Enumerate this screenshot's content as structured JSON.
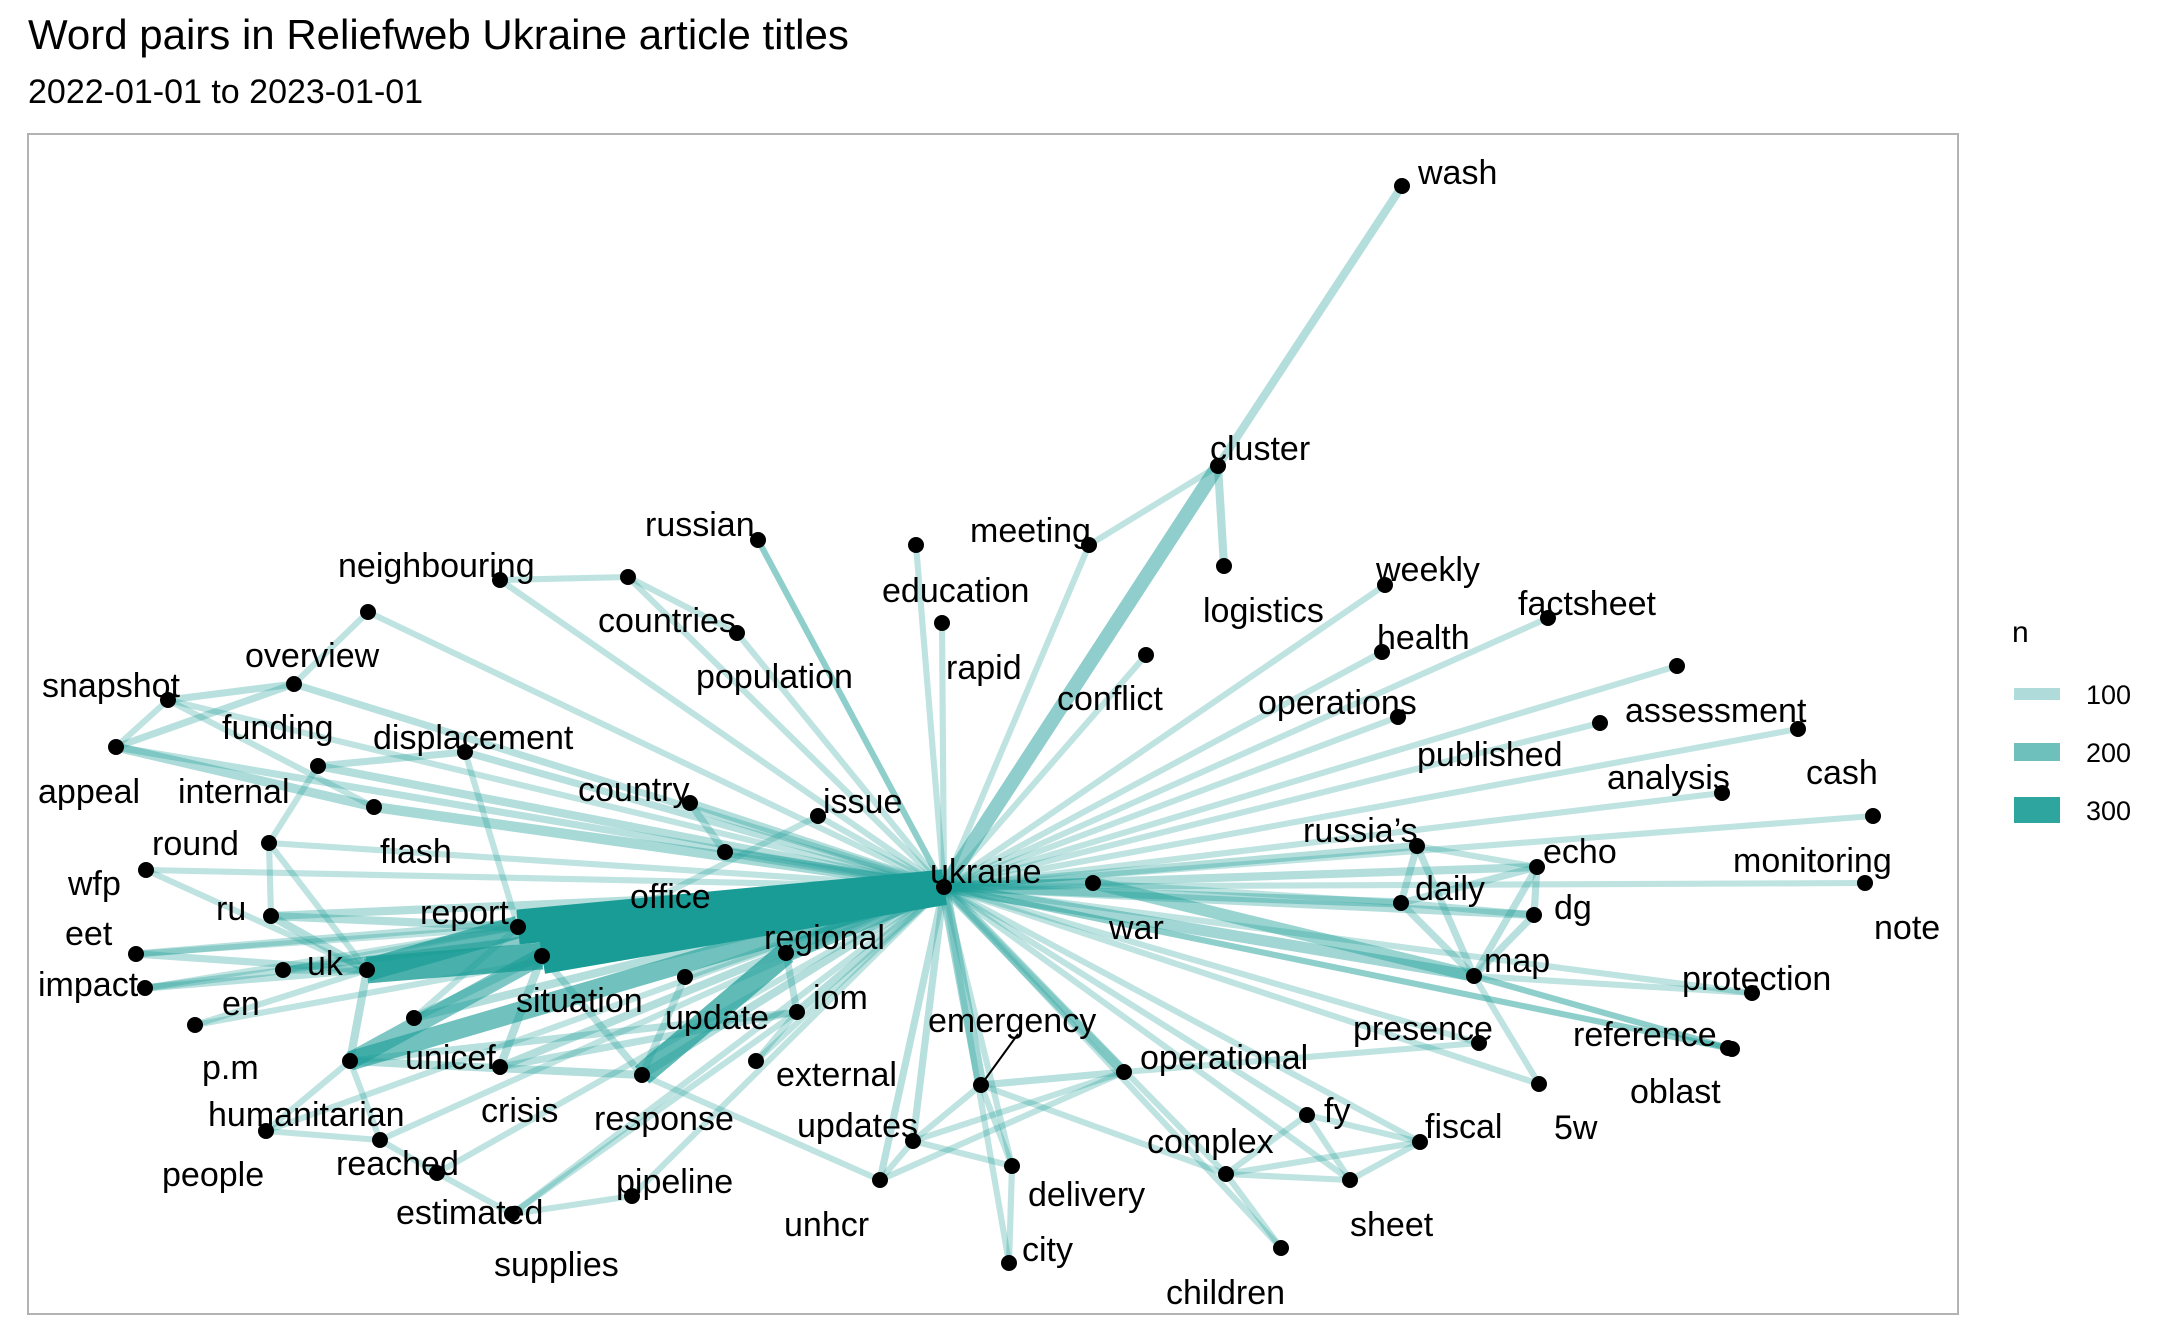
{
  "title": "Word pairs in Reliefweb Ukraine article titles",
  "subtitle": "2022-01-01 to 2023-01-01",
  "colors": {
    "edge": "#1a9c96",
    "node": "#000000",
    "panel_border": "#b3b3b3"
  },
  "legend": {
    "title": "n",
    "items": [
      {
        "label": "100",
        "value": 100
      },
      {
        "label": "200",
        "value": 200
      },
      {
        "label": "300",
        "value": 300
      }
    ]
  },
  "nodes": [
    {
      "id": "wash",
      "label": "wash"
    },
    {
      "id": "cluster",
      "label": "cluster"
    },
    {
      "id": "meeting",
      "label": "meeting"
    },
    {
      "id": "russian",
      "label": "russian"
    },
    {
      "id": "neighbouring",
      "label": "neighbouring"
    },
    {
      "id": "countries",
      "label": "countries"
    },
    {
      "id": "population",
      "label": "population"
    },
    {
      "id": "education",
      "label": "education"
    },
    {
      "id": "rapid",
      "label": "rapid"
    },
    {
      "id": "logistics",
      "label": "logistics"
    },
    {
      "id": "weekly",
      "label": "weekly"
    },
    {
      "id": "health",
      "label": "health"
    },
    {
      "id": "factsheet",
      "label": "factsheet"
    },
    {
      "id": "overview",
      "label": "overview"
    },
    {
      "id": "snapshot",
      "label": "snapshot"
    },
    {
      "id": "funding",
      "label": "funding"
    },
    {
      "id": "displacement",
      "label": "displacement"
    },
    {
      "id": "appeal",
      "label": "appeal"
    },
    {
      "id": "internal",
      "label": "internal"
    },
    {
      "id": "conflict",
      "label": "conflict"
    },
    {
      "id": "operations",
      "label": "operations"
    },
    {
      "id": "assessment",
      "label": "assessment"
    },
    {
      "id": "published",
      "label": "published"
    },
    {
      "id": "analysis",
      "label": "analysis"
    },
    {
      "id": "cash",
      "label": "cash"
    },
    {
      "id": "country",
      "label": "country"
    },
    {
      "id": "issue",
      "label": "issue"
    },
    {
      "id": "flash",
      "label": "flash"
    },
    {
      "id": "round",
      "label": "round"
    },
    {
      "id": "wfp",
      "label": "wfp"
    },
    {
      "id": "office",
      "label": "office"
    },
    {
      "id": "ukraine",
      "label": "ukraine"
    },
    {
      "id": "russias",
      "label": "russia’s"
    },
    {
      "id": "echo",
      "label": "echo"
    },
    {
      "id": "monitoring",
      "label": "monitoring"
    },
    {
      "id": "daily",
      "label": "daily"
    },
    {
      "id": "dg",
      "label": "dg"
    },
    {
      "id": "war",
      "label": "war"
    },
    {
      "id": "note",
      "label": "note"
    },
    {
      "id": "ru",
      "label": "ru"
    },
    {
      "id": "report",
      "label": "report"
    },
    {
      "id": "eet",
      "label": "eet"
    },
    {
      "id": "regional",
      "label": "regional"
    },
    {
      "id": "uk",
      "label": "uk"
    },
    {
      "id": "impact",
      "label": "impact"
    },
    {
      "id": "situation",
      "label": "situation"
    },
    {
      "id": "iom",
      "label": "iom"
    },
    {
      "id": "map",
      "label": "map"
    },
    {
      "id": "protection",
      "label": "protection"
    },
    {
      "id": "en",
      "label": "en"
    },
    {
      "id": "update",
      "label": "update"
    },
    {
      "id": "emergency",
      "label": "emergency"
    },
    {
      "id": "presence",
      "label": "presence"
    },
    {
      "id": "reference",
      "label": "reference"
    },
    {
      "id": "pm",
      "label": "p.m"
    },
    {
      "id": "unicef",
      "label": "unicef"
    },
    {
      "id": "operational",
      "label": "operational"
    },
    {
      "id": "external",
      "label": "external"
    },
    {
      "id": "oblast",
      "label": "oblast"
    },
    {
      "id": "humanitarian",
      "label": "humanitarian"
    },
    {
      "id": "crisis",
      "label": "crisis"
    },
    {
      "id": "response",
      "label": "response"
    },
    {
      "id": "fy",
      "label": "fy"
    },
    {
      "id": "5w",
      "label": "5w"
    },
    {
      "id": "updates",
      "label": "updates"
    },
    {
      "id": "fiscal",
      "label": "fiscal"
    },
    {
      "id": "people",
      "label": "people"
    },
    {
      "id": "reached",
      "label": "reached"
    },
    {
      "id": "complex",
      "label": "complex"
    },
    {
      "id": "pipeline",
      "label": "pipeline"
    },
    {
      "id": "delivery",
      "label": "delivery"
    },
    {
      "id": "estimated",
      "label": "estimated"
    },
    {
      "id": "unhcr",
      "label": "unhcr"
    },
    {
      "id": "sheet",
      "label": "sheet"
    },
    {
      "id": "supplies",
      "label": "supplies"
    },
    {
      "id": "city",
      "label": "city"
    },
    {
      "id": "children",
      "label": "children"
    }
  ],
  "edges": [
    {
      "from": "ukraine",
      "to": "report",
      "n": 320
    },
    {
      "from": "ukraine",
      "to": "situation",
      "n": 330
    },
    {
      "from": "situation",
      "to": "uk",
      "n": 240
    },
    {
      "from": "report",
      "to": "uk",
      "n": 200
    },
    {
      "from": "regional",
      "to": "response",
      "n": 200
    },
    {
      "from": "ukraine",
      "to": "regional",
      "n": 160
    },
    {
      "from": "ukraine",
      "to": "humanitarian",
      "n": 170
    },
    {
      "from": "humanitarian",
      "to": "situation",
      "n": 150
    },
    {
      "from": "ukraine",
      "to": "cluster",
      "n": 120
    },
    {
      "from": "cluster",
      "to": "wash",
      "n": 60
    },
    {
      "from": "cluster",
      "to": "logistics",
      "n": 60
    },
    {
      "from": "cluster",
      "to": "meeting",
      "n": 40
    },
    {
      "from": "ukraine",
      "to": "war",
      "n": 80
    },
    {
      "from": "war",
      "to": "map",
      "n": 100
    },
    {
      "from": "ukraine",
      "to": "map",
      "n": 90
    },
    {
      "from": "ukraine",
      "to": "daily",
      "n": 70
    },
    {
      "from": "ukraine",
      "to": "echo",
      "n": 60
    },
    {
      "from": "ukraine",
      "to": "dg",
      "n": 60
    },
    {
      "from": "ukraine",
      "to": "russias",
      "n": 60
    },
    {
      "from": "ukraine",
      "to": "emergency",
      "n": 90
    },
    {
      "from": "ukraine",
      "to": "operational",
      "n": 80
    },
    {
      "from": "ukraine",
      "to": "office",
      "n": 70
    },
    {
      "from": "ukraine",
      "to": "flash",
      "n": 80
    },
    {
      "from": "flash",
      "to": "appeal",
      "n": 70
    },
    {
      "from": "funding",
      "to": "snapshot",
      "n": 50
    },
    {
      "from": "funding",
      "to": "appeal",
      "n": 50
    },
    {
      "from": "ukraine",
      "to": "funding",
      "n": 50
    },
    {
      "from": "ukraine",
      "to": "internal",
      "n": 60
    },
    {
      "from": "internal",
      "to": "displacement",
      "n": 50
    },
    {
      "from": "ukraine",
      "to": "displacement",
      "n": 50
    },
    {
      "from": "ukraine",
      "to": "overview",
      "n": 40
    },
    {
      "from": "ukraine",
      "to": "snapshot",
      "n": 40
    },
    {
      "from": "ukraine",
      "to": "appeal",
      "n": 50
    },
    {
      "from": "ukraine",
      "to": "neighbouring",
      "n": 40
    },
    {
      "from": "neighbouring",
      "to": "countries",
      "n": 40
    },
    {
      "from": "ukraine",
      "to": "countries",
      "n": 40
    },
    {
      "from": "ukraine",
      "to": "russian",
      "n": 40
    },
    {
      "from": "ukraine",
      "to": "population",
      "n": 40
    },
    {
      "from": "ukraine",
      "to": "education",
      "n": 40
    },
    {
      "from": "ukraine",
      "to": "rapid",
      "n": 40
    },
    {
      "from": "ukraine",
      "to": "meeting",
      "n": 40
    },
    {
      "from": "ukraine",
      "to": "conflict",
      "n": 40
    },
    {
      "from": "ukraine",
      "to": "weekly",
      "n": 40
    },
    {
      "from": "ukraine",
      "to": "health",
      "n": 40
    },
    {
      "from": "ukraine",
      "to": "factsheet",
      "n": 40
    },
    {
      "from": "ukraine",
      "to": "operations",
      "n": 40
    },
    {
      "from": "ukraine",
      "to": "assessment",
      "n": 40
    },
    {
      "from": "ukraine",
      "to": "published",
      "n": 40
    },
    {
      "from": "ukraine",
      "to": "analysis",
      "n": 40
    },
    {
      "from": "ukraine",
      "to": "cash",
      "n": 40
    },
    {
      "from": "ukraine",
      "to": "monitoring",
      "n": 40
    },
    {
      "from": "ukraine",
      "to": "note",
      "n": 40
    },
    {
      "from": "ukraine",
      "to": "protection",
      "n": 40
    },
    {
      "from": "ukraine",
      "to": "reference",
      "n": 40
    },
    {
      "from": "ukraine",
      "to": "oblast",
      "n": 40
    },
    {
      "from": "ukraine",
      "to": "5w",
      "n": 40
    },
    {
      "from": "ukraine",
      "to": "presence",
      "n": 40
    },
    {
      "from": "ukraine",
      "to": "country",
      "n": 60
    },
    {
      "from": "ukraine",
      "to": "issue",
      "n": 40
    },
    {
      "from": "ukraine",
      "to": "round",
      "n": 40
    },
    {
      "from": "ukraine",
      "to": "wfp",
      "n": 40
    },
    {
      "from": "ukraine",
      "to": "ru",
      "n": 60
    },
    {
      "from": "ukraine",
      "to": "eet",
      "n": 50
    },
    {
      "from": "ukraine",
      "to": "impact",
      "n": 50
    },
    {
      "from": "ukraine",
      "to": "en",
      "n": 50
    },
    {
      "from": "ukraine",
      "to": "pm",
      "n": 40
    },
    {
      "from": "ukraine",
      "to": "unicef",
      "n": 60
    },
    {
      "from": "ukraine",
      "to": "crisis",
      "n": 60
    },
    {
      "from": "ukraine",
      "to": "response",
      "n": 60
    },
    {
      "from": "ukraine",
      "to": "update",
      "n": 60
    },
    {
      "from": "ukraine",
      "to": "iom",
      "n": 50
    },
    {
      "from": "ukraine",
      "to": "external",
      "n": 40
    },
    {
      "from": "ukraine",
      "to": "updates",
      "n": 50
    },
    {
      "from": "ukraine",
      "to": "unhcr",
      "n": 50
    },
    {
      "from": "ukraine",
      "to": "delivery",
      "n": 40
    },
    {
      "from": "ukraine",
      "to": "city",
      "n": 40
    },
    {
      "from": "ukraine",
      "to": "complex",
      "n": 40
    },
    {
      "from": "ukraine",
      "to": "fy",
      "n": 40
    },
    {
      "from": "ukraine",
      "to": "fiscal",
      "n": 40
    },
    {
      "from": "ukraine",
      "to": "sheet",
      "n": 40
    },
    {
      "from": "ukraine",
      "to": "children",
      "n": 40
    },
    {
      "from": "ukraine",
      "to": "people",
      "n": 40
    },
    {
      "from": "ukraine",
      "to": "reached",
      "n": 40
    },
    {
      "from": "ukraine",
      "to": "estimated",
      "n": 40
    },
    {
      "from": "ukraine",
      "to": "supplies",
      "n": 40
    },
    {
      "from": "ukraine",
      "to": "pipeline",
      "n": 40
    },
    {
      "from": "country",
      "to": "office",
      "n": 50
    },
    {
      "from": "issue",
      "to": "situation",
      "n": 40
    },
    {
      "from": "round",
      "to": "uk",
      "n": 40
    },
    {
      "from": "wfp",
      "to": "uk",
      "n": 40
    },
    {
      "from": "ru",
      "to": "report",
      "n": 60
    },
    {
      "from": "ru",
      "to": "uk",
      "n": 60
    },
    {
      "from": "eet",
      "to": "uk",
      "n": 50
    },
    {
      "from": "eet",
      "to": "report",
      "n": 40
    },
    {
      "from": "impact",
      "to": "uk",
      "n": 50
    },
    {
      "from": "impact",
      "to": "report",
      "n": 40
    },
    {
      "from": "en",
      "to": "uk",
      "n": 50
    },
    {
      "from": "en",
      "to": "report",
      "n": 40
    },
    {
      "from": "pm",
      "to": "uk",
      "n": 40
    },
    {
      "from": "unicef",
      "to": "situation",
      "n": 60
    },
    {
      "from": "unicef",
      "to": "report",
      "n": 40
    },
    {
      "from": "crisis",
      "to": "situation",
      "n": 60
    },
    {
      "from": "crisis",
      "to": "update",
      "n": 50
    },
    {
      "from": "humanitarian",
      "to": "response",
      "n": 60
    },
    {
      "from": "humanitarian",
      "to": "update",
      "n": 50
    },
    {
      "from": "humanitarian",
      "to": "uk",
      "n": 60
    },
    {
      "from": "regional",
      "to": "update",
      "n": 50
    },
    {
      "from": "response",
      "to": "iom",
      "n": 50
    },
    {
      "from": "response",
      "to": "unhcr",
      "n": 40
    },
    {
      "from": "response",
      "to": "situation",
      "n": 50
    },
    {
      "from": "external",
      "to": "update",
      "n": 40
    },
    {
      "from": "updates",
      "to": "emergency",
      "n": 40
    },
    {
      "from": "updates",
      "to": "unhcr",
      "n": 40
    },
    {
      "from": "delivery",
      "to": "emergency",
      "n": 40
    },
    {
      "from": "delivery",
      "to": "updates",
      "n": 40
    },
    {
      "from": "operational",
      "to": "presence",
      "n": 40
    },
    {
      "from": "operational",
      "to": "updates",
      "n": 40
    },
    {
      "from": "operational",
      "to": "emergency",
      "n": 50
    },
    {
      "from": "operational",
      "to": "unhcr",
      "n": 40
    },
    {
      "from": "complex",
      "to": "emergency",
      "n": 40
    },
    {
      "from": "complex",
      "to": "fy",
      "n": 40
    },
    {
      "from": "complex",
      "to": "fiscal",
      "n": 40
    },
    {
      "from": "complex",
      "to": "sheet",
      "n": 40
    },
    {
      "from": "fy",
      "to": "fiscal",
      "n": 40
    },
    {
      "from": "fy",
      "to": "sheet",
      "n": 40
    },
    {
      "from": "fiscal",
      "to": "sheet",
      "n": 40
    },
    {
      "from": "map",
      "to": "reference",
      "n": 40
    },
    {
      "from": "map",
      "to": "5w",
      "n": 40
    },
    {
      "from": "map",
      "to": "protection",
      "n": 40
    },
    {
      "from": "map",
      "to": "oblast",
      "n": 40
    },
    {
      "from": "map",
      "to": "daily",
      "n": 50
    },
    {
      "from": "map",
      "to": "echo",
      "n": 50
    },
    {
      "from": "map",
      "to": "dg",
      "n": 50
    },
    {
      "from": "map",
      "to": "russias",
      "n": 50
    },
    {
      "from": "daily",
      "to": "echo",
      "n": 50
    },
    {
      "from": "daily",
      "to": "dg",
      "n": 50
    },
    {
      "from": "echo",
      "to": "dg",
      "n": 50
    },
    {
      "from": "russias",
      "to": "daily",
      "n": 50
    },
    {
      "from": "russias",
      "to": "echo",
      "n": 40
    },
    {
      "from": "war",
      "to": "daily",
      "n": 40
    },
    {
      "from": "people",
      "to": "reached",
      "n": 40
    },
    {
      "from": "reached",
      "to": "estimated",
      "n": 40
    },
    {
      "from": "estimated",
      "to": "supplies",
      "n": 40
    },
    {
      "from": "pipeline",
      "to": "supplies",
      "n": 40
    },
    {
      "from": "people",
      "to": "humanitarian",
      "n": 40
    },
    {
      "from": "reached",
      "to": "humanitarian",
      "n": 40
    },
    {
      "from": "supplies",
      "to": "update",
      "n": 40
    },
    {
      "from": "children",
      "to": "complex",
      "n": 40
    },
    {
      "from": "city",
      "to": "delivery",
      "n": 40
    },
    {
      "from": "overview",
      "to": "funding",
      "n": 40
    },
    {
      "from": "snapshot",
      "to": "appeal",
      "n": 40
    },
    {
      "from": "flash",
      "to": "snapshot",
      "n": 40
    },
    {
      "from": "internal",
      "to": "round",
      "n": 40
    },
    {
      "from": "displacement",
      "to": "report",
      "n": 40
    },
    {
      "from": "round",
      "to": "ru",
      "n": 40
    },
    {
      "from": "population",
      "to": "countries",
      "n": 40
    },
    {
      "from": "russian",
      "to": "ukraine",
      "n": 40
    }
  ]
}
